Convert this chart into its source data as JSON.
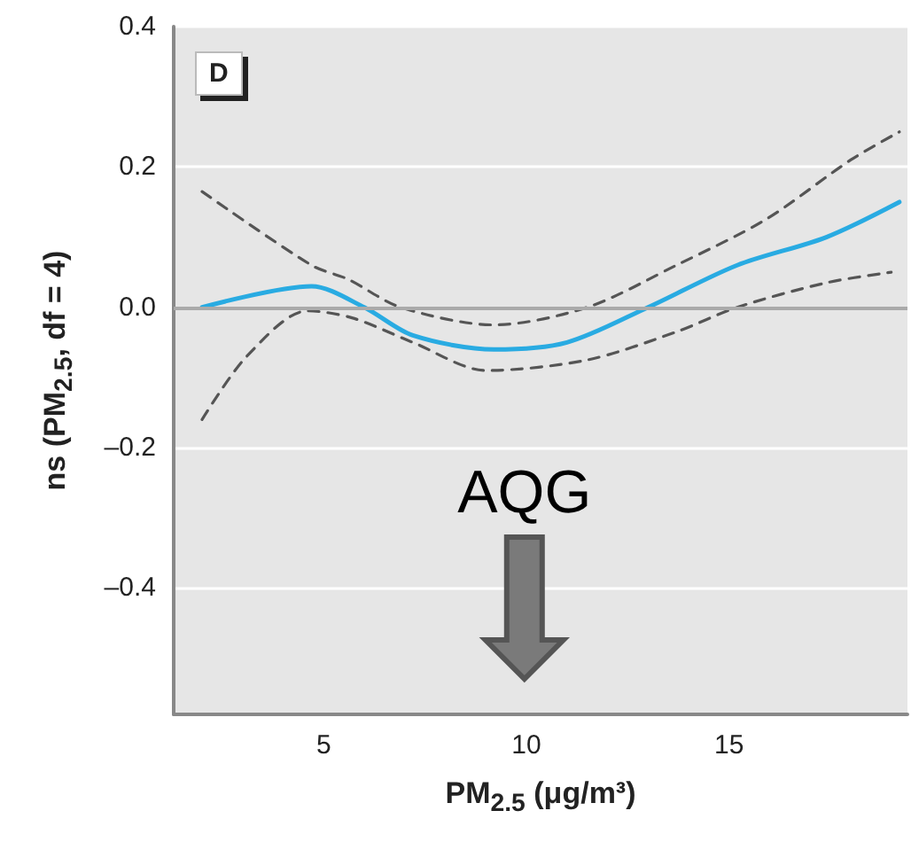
{
  "chart_data": {
    "type": "line",
    "xlabel": "PM$_{2.5}$ (μg/m³)",
    "ylabel": "ns (PM$_{2.5}$, df = 4)",
    "annotations": [
      "D",
      "AQG"
    ],
    "series": [
      {
        "color": "#29abe2",
        "line_style": "solid",
        "x": [
          2.0,
          4.7,
          6.0,
          7.2,
          9.2,
          11.0,
          13.0,
          15.2,
          17.4,
          19.2
        ],
        "values": [
          0.0,
          0.03,
          0.0,
          -0.04,
          -0.06,
          -0.05,
          0.0,
          0.06,
          0.1,
          0.15
        ]
      },
      {
        "color": "#555555",
        "line_style": "dashed",
        "x": [
          2.0,
          4.7,
          5.6,
          6.9,
          9.2,
          11.5,
          13.7,
          15.9,
          18.0,
          19.2
        ],
        "values": [
          0.165,
          0.06,
          0.04,
          0.0,
          -0.025,
          0.0,
          0.06,
          0.125,
          0.21,
          0.25
        ]
      },
      {
        "color": "#555555",
        "line_style": "dashed",
        "x": [
          2.0,
          3.1,
          4.6,
          5.7,
          7.2,
          9.0,
          11.5,
          13.7,
          15.2,
          17.4,
          19.0
        ],
        "values": [
          -0.16,
          -0.07,
          -0.005,
          -0.015,
          -0.05,
          -0.09,
          -0.075,
          -0.035,
          0.0,
          0.035,
          0.05
        ]
      }
    ],
    "xlim": [
      1.3,
      19.4
    ],
    "xticks": [
      5,
      10,
      15
    ],
    "ylim": [
      -0.58,
      0.4
    ],
    "yticks": [
      0.4,
      0.2,
      {
        "value": 0,
        "label": "0.0"
      },
      {
        "value": -0.2,
        "label": "–0.2"
      },
      {
        "value": -0.4,
        "label": "–0.4"
      }
    ],
    "ref_lines": [
      {
        "axis": "y",
        "value": 0,
        "color": "#aaaaaa"
      }
    ],
    "grid": "y",
    "marker": "none"
  }
}
